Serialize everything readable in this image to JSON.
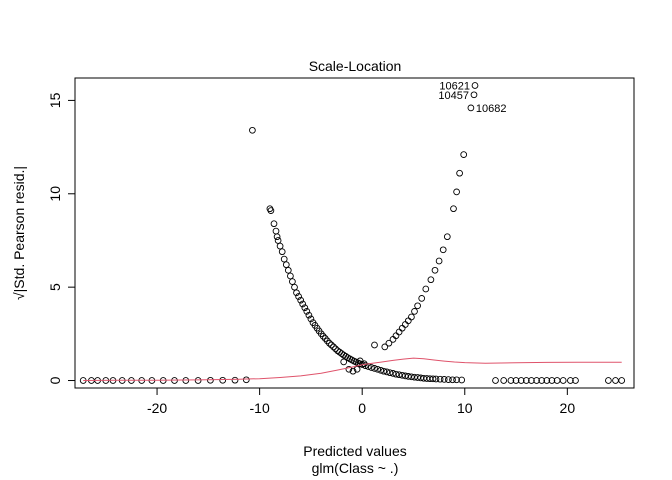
{
  "chart_data": {
    "type": "scatter",
    "title": "Scale-Location",
    "xlabel": "Predicted values",
    "subtitle": "glm(Class ~ .)",
    "ylabel": "√|Std. Pearson resid.|",
    "xlim": [
      -28,
      26.5
    ],
    "ylim": [
      -0.4,
      16.2
    ],
    "x_ticks": [
      -20,
      -10,
      0,
      10,
      20
    ],
    "x_tick_labels": [
      "-20",
      "-10",
      "0",
      "10",
      "20"
    ],
    "y_ticks": [
      0,
      5,
      10,
      15
    ],
    "y_tick_labels": [
      "0",
      "5",
      "10",
      "15"
    ],
    "grid": false,
    "series": [
      {
        "marker": "open-circle",
        "color": "#000000",
        "points": [
          [
            -27.2,
            0.0
          ],
          [
            -26.4,
            0.0
          ],
          [
            -25.8,
            0.0
          ],
          [
            -25.0,
            0.0
          ],
          [
            -24.3,
            0.0
          ],
          [
            -23.4,
            0.0
          ],
          [
            -22.5,
            0.0
          ],
          [
            -21.5,
            0.0
          ],
          [
            -20.5,
            0.0
          ],
          [
            -19.4,
            0.0
          ],
          [
            -18.3,
            0.0
          ],
          [
            -17.2,
            0.0
          ],
          [
            -16.0,
            0.0
          ],
          [
            -14.8,
            0.01
          ],
          [
            -13.6,
            0.01
          ],
          [
            -12.4,
            0.02
          ],
          [
            -11.3,
            0.04
          ],
          [
            -10.7,
            13.4
          ],
          [
            -9.0,
            9.2
          ],
          [
            -8.9,
            9.1
          ],
          [
            -8.6,
            8.4
          ],
          [
            -8.4,
            8.0
          ],
          [
            -8.3,
            7.7
          ],
          [
            -8.2,
            7.5
          ],
          [
            -8.0,
            7.2
          ],
          [
            -7.8,
            6.9
          ],
          [
            -7.6,
            6.5
          ],
          [
            -7.4,
            6.2
          ],
          [
            -7.2,
            5.9
          ],
          [
            -7.0,
            5.6
          ],
          [
            -6.8,
            5.3
          ],
          [
            -6.6,
            5.0
          ],
          [
            -6.4,
            4.7
          ],
          [
            -6.2,
            4.5
          ],
          [
            -6.0,
            4.3
          ],
          [
            -5.8,
            4.1
          ],
          [
            -5.6,
            3.9
          ],
          [
            -5.4,
            3.7
          ],
          [
            -5.2,
            3.5
          ],
          [
            -5.0,
            3.3
          ],
          [
            -4.8,
            3.1
          ],
          [
            -4.6,
            2.95
          ],
          [
            -4.4,
            2.8
          ],
          [
            -4.2,
            2.65
          ],
          [
            -4.0,
            2.5
          ],
          [
            -3.8,
            2.37
          ],
          [
            -3.6,
            2.25
          ],
          [
            -3.4,
            2.12
          ],
          [
            -3.2,
            2.0
          ],
          [
            -3.0,
            1.9
          ],
          [
            -2.8,
            1.8
          ],
          [
            -2.6,
            1.7
          ],
          [
            -2.4,
            1.6
          ],
          [
            -2.2,
            1.52
          ],
          [
            -2.0,
            1.44
          ],
          [
            -1.8,
            1.36
          ],
          [
            -1.6,
            1.29
          ],
          [
            -1.4,
            1.22
          ],
          [
            -1.2,
            1.16
          ],
          [
            -1.0,
            1.1
          ],
          [
            -0.8,
            1.04
          ],
          [
            -0.6,
            0.99
          ],
          [
            -0.4,
            0.94
          ],
          [
            -0.2,
            0.9
          ],
          [
            0.0,
            0.86
          ],
          [
            0.3,
            0.8
          ],
          [
            0.6,
            0.75
          ],
          [
            0.9,
            0.7
          ],
          [
            1.2,
            0.65
          ],
          [
            1.5,
            0.6
          ],
          [
            1.8,
            0.55
          ],
          [
            2.1,
            0.5
          ],
          [
            2.4,
            0.46
          ],
          [
            2.7,
            0.42
          ],
          [
            3.0,
            0.38
          ],
          [
            3.3,
            0.34
          ],
          [
            3.6,
            0.31
          ],
          [
            3.9,
            0.28
          ],
          [
            4.2,
            0.25
          ],
          [
            4.5,
            0.22
          ],
          [
            4.8,
            0.2
          ],
          [
            5.1,
            0.18
          ],
          [
            5.4,
            0.16
          ],
          [
            5.7,
            0.14
          ],
          [
            6.0,
            0.12
          ],
          [
            6.3,
            0.11
          ],
          [
            6.6,
            0.1
          ],
          [
            6.9,
            0.09
          ],
          [
            7.2,
            0.08
          ],
          [
            7.6,
            0.07
          ],
          [
            8.0,
            0.06
          ],
          [
            8.4,
            0.05
          ],
          [
            8.8,
            0.04
          ],
          [
            9.2,
            0.04
          ],
          [
            9.7,
            0.03
          ],
          [
            -1.8,
            1.0
          ],
          [
            -1.3,
            0.6
          ],
          [
            -0.9,
            0.5
          ],
          [
            -0.5,
            0.6
          ],
          [
            -0.2,
            1.05
          ],
          [
            0.2,
            0.9
          ],
          [
            1.2,
            1.9
          ],
          [
            2.2,
            1.8
          ],
          [
            2.6,
            2.0
          ],
          [
            3.0,
            2.2
          ],
          [
            3.3,
            2.4
          ],
          [
            3.6,
            2.6
          ],
          [
            3.9,
            2.8
          ],
          [
            4.2,
            3.0
          ],
          [
            4.5,
            3.2
          ],
          [
            4.8,
            3.4
          ],
          [
            5.1,
            3.7
          ],
          [
            5.4,
            4.0
          ],
          [
            5.8,
            4.4
          ],
          [
            6.2,
            4.9
          ],
          [
            6.7,
            5.4
          ],
          [
            7.1,
            5.9
          ],
          [
            7.5,
            6.4
          ],
          [
            7.9,
            7.0
          ],
          [
            8.3,
            7.7
          ],
          [
            8.9,
            9.2
          ],
          [
            9.2,
            10.1
          ],
          [
            9.5,
            11.1
          ],
          [
            9.9,
            12.1
          ],
          [
            10.6,
            14.6
          ],
          [
            10.9,
            15.3
          ],
          [
            11.0,
            15.8
          ],
          [
            13.0,
            0.0
          ],
          [
            13.8,
            0.0
          ],
          [
            14.5,
            0.0
          ],
          [
            15.0,
            0.0
          ],
          [
            15.5,
            0.0
          ],
          [
            16.0,
            0.0
          ],
          [
            16.5,
            0.0
          ],
          [
            17.0,
            0.0
          ],
          [
            17.5,
            0.0
          ],
          [
            18.0,
            0.0
          ],
          [
            18.5,
            0.0
          ],
          [
            19.0,
            0.0
          ],
          [
            19.6,
            0.0
          ],
          [
            20.3,
            0.0
          ],
          [
            20.8,
            0.0
          ],
          [
            24.0,
            0.0
          ],
          [
            24.7,
            0.0
          ],
          [
            25.3,
            0.0
          ]
        ]
      }
    ],
    "smooth_line": {
      "color": "#DF536B",
      "points": [
        [
          -27.2,
          0.0
        ],
        [
          -24.0,
          0.01
        ],
        [
          -20.0,
          0.02
        ],
        [
          -15.0,
          0.04
        ],
        [
          -12.0,
          0.07
        ],
        [
          -10.0,
          0.1
        ],
        [
          -8.0,
          0.16
        ],
        [
          -6.0,
          0.25
        ],
        [
          -4.0,
          0.39
        ],
        [
          -2.5,
          0.55
        ],
        [
          -1.0,
          0.72
        ],
        [
          0.0,
          0.84
        ],
        [
          1.0,
          0.92
        ],
        [
          2.0,
          1.0
        ],
        [
          3.0,
          1.08
        ],
        [
          4.0,
          1.15
        ],
        [
          5.0,
          1.2
        ],
        [
          6.0,
          1.17
        ],
        [
          7.0,
          1.1
        ],
        [
          8.0,
          1.04
        ],
        [
          9.0,
          0.99
        ],
        [
          10.0,
          0.96
        ],
        [
          12.0,
          0.93
        ],
        [
          15.0,
          0.95
        ],
        [
          18.0,
          0.97
        ],
        [
          21.0,
          0.98
        ],
        [
          25.3,
          0.98
        ]
      ]
    },
    "annotations": [
      {
        "label": "10621",
        "x": 11.0,
        "y": 15.8,
        "side": "left"
      },
      {
        "label": "10457",
        "x": 10.9,
        "y": 15.3,
        "side": "left"
      },
      {
        "label": "10682",
        "x": 10.6,
        "y": 14.6,
        "side": "right"
      }
    ]
  }
}
